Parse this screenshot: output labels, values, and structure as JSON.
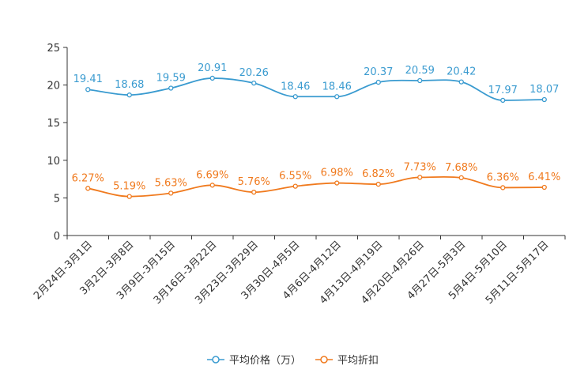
{
  "chart_data": {
    "type": "line",
    "categories": [
      "2月24日-3月1日",
      "3月2日-3月8日",
      "3月9日-3月15日",
      "3月16日-3月22日",
      "3月23日-3月29日",
      "3月30日-4月5日",
      "4月6日-4月12日",
      "4月13日-4月19日",
      "4月20日-4月26日",
      "4月27日-5月3日",
      "5月4日-5月10日",
      "5月11日-5月17日"
    ],
    "series": [
      {
        "name": "平均价格（万）",
        "values": [
          19.41,
          18.68,
          19.59,
          20.91,
          20.26,
          18.46,
          18.46,
          20.37,
          20.59,
          20.42,
          17.97,
          18.07
        ],
        "labels": [
          "19.41",
          "18.68",
          "19.59",
          "20.91",
          "20.26",
          "18.46",
          "18.46",
          "20.37",
          "20.59",
          "20.42",
          "17.97",
          "18.07"
        ],
        "color": "#3a9bd0"
      },
      {
        "name": "平均折扣",
        "values": [
          6.27,
          5.19,
          5.63,
          6.69,
          5.76,
          6.55,
          6.98,
          6.82,
          7.73,
          7.68,
          6.36,
          6.41
        ],
        "labels": [
          "6.27%",
          "5.19%",
          "5.63%",
          "6.69%",
          "5.76%",
          "6.55%",
          "6.98%",
          "6.82%",
          "7.73%",
          "7.68%",
          "6.36%",
          "6.41%"
        ],
        "color": "#f07a1e"
      }
    ],
    "yticks": [
      "0",
      "5",
      "10",
      "15",
      "20",
      "25"
    ],
    "ylim": [
      0,
      25
    ],
    "legend_position": "bottom-center"
  }
}
